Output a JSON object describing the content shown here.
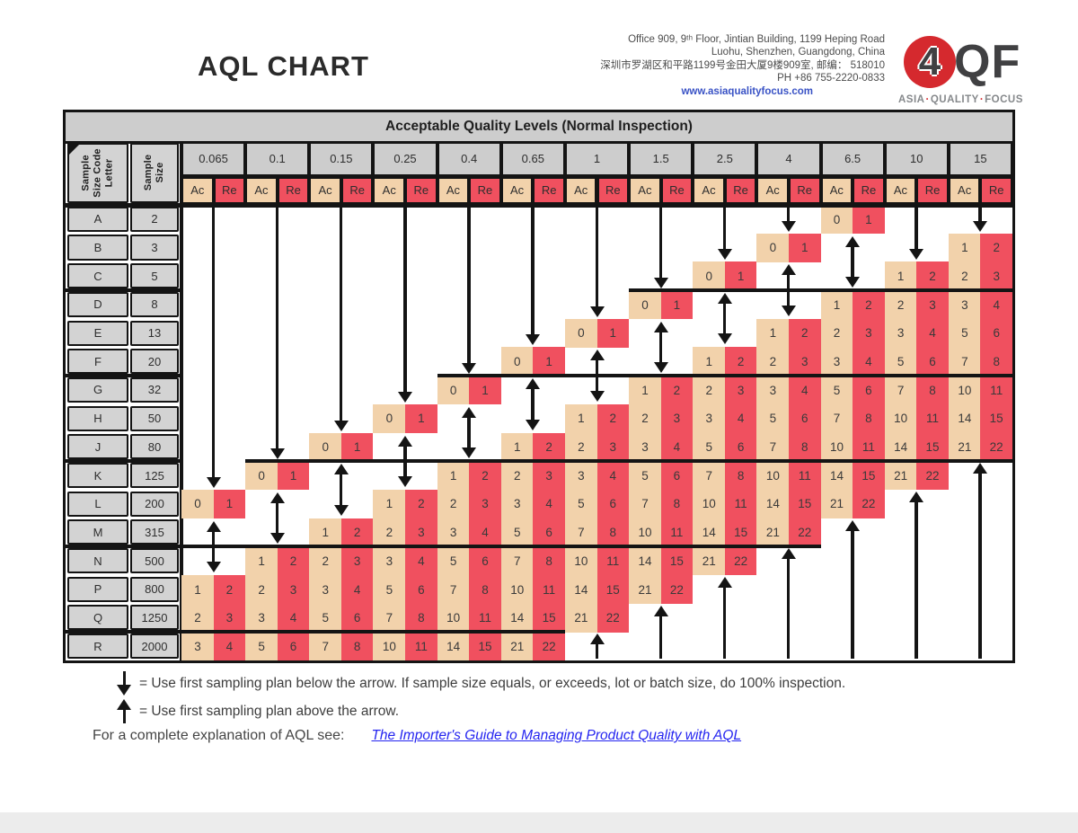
{
  "title": "AQL CHART",
  "contact": {
    "lines": [
      "Office 909, 9ᵗʰ Floor, Jintian Building, 1199 Heping Road",
      "Luohu, Shenzhen, Guangdong, China",
      "深圳市罗湖区和平路1199号金田大厦9楼909室, 邮编： 518010",
      "PH +86 755-2220-0833"
    ],
    "website": "www.asiaqualityfocus.com"
  },
  "logo": {
    "four": "4",
    "qf": "QF",
    "tagline": [
      "ASIA",
      "QUALITY",
      "FOCUS"
    ],
    "separator": "·"
  },
  "colors": {
    "ac_tan": "#f2d2ab",
    "re_red": "#f0505f",
    "header_gray": "#cdcdcd",
    "line_black": "#141414",
    "link_blue": "#2424f0",
    "logo_red": "#d5292e",
    "logo_gray": "#404042",
    "website_blue": "#3952c5"
  },
  "table": {
    "header": "Acceptable Quality Levels (Normal Inspection)",
    "col1_label": "Sample Size Code Letter",
    "col1_label_lines": [
      "Sample",
      "Size Code",
      "Letter"
    ],
    "col2_label": "Sample Size",
    "col2_label_lines": [
      "Sample",
      "Size"
    ],
    "ac_label": "Ac",
    "re_label": "Re",
    "aql_levels": [
      "0.065",
      "0.1",
      "0.15",
      "0.25",
      "0.4",
      "0.65",
      "1",
      "1.5",
      "2.5",
      "4",
      "6.5",
      "10",
      "15"
    ],
    "rows": [
      {
        "code": "A",
        "size": "2",
        "plans": [
          null,
          null,
          null,
          null,
          null,
          null,
          null,
          null,
          null,
          null,
          [
            0,
            1
          ],
          null,
          null
        ]
      },
      {
        "code": "B",
        "size": "3",
        "plans": [
          null,
          null,
          null,
          null,
          null,
          null,
          null,
          null,
          null,
          [
            0,
            1
          ],
          null,
          null,
          [
            1,
            2
          ]
        ]
      },
      {
        "code": "C",
        "size": "5",
        "plans": [
          null,
          null,
          null,
          null,
          null,
          null,
          null,
          null,
          [
            0,
            1
          ],
          null,
          null,
          [
            1,
            2
          ],
          [
            2,
            3
          ]
        ]
      },
      {
        "code": "D",
        "size": "8",
        "plans": [
          null,
          null,
          null,
          null,
          null,
          null,
          null,
          [
            0,
            1
          ],
          null,
          null,
          [
            1,
            2
          ],
          [
            2,
            3
          ],
          [
            3,
            4
          ]
        ]
      },
      {
        "code": "E",
        "size": "13",
        "plans": [
          null,
          null,
          null,
          null,
          null,
          null,
          [
            0,
            1
          ],
          null,
          null,
          [
            1,
            2
          ],
          [
            2,
            3
          ],
          [
            3,
            4
          ],
          [
            5,
            6
          ]
        ]
      },
      {
        "code": "F",
        "size": "20",
        "plans": [
          null,
          null,
          null,
          null,
          null,
          [
            0,
            1
          ],
          null,
          null,
          [
            1,
            2
          ],
          [
            2,
            3
          ],
          [
            3,
            4
          ],
          [
            5,
            6
          ],
          [
            7,
            8
          ]
        ]
      },
      {
        "code": "G",
        "size": "32",
        "plans": [
          null,
          null,
          null,
          null,
          [
            0,
            1
          ],
          null,
          null,
          [
            1,
            2
          ],
          [
            2,
            3
          ],
          [
            3,
            4
          ],
          [
            5,
            6
          ],
          [
            7,
            8
          ],
          [
            10,
            11
          ]
        ]
      },
      {
        "code": "H",
        "size": "50",
        "plans": [
          null,
          null,
          null,
          [
            0,
            1
          ],
          null,
          null,
          [
            1,
            2
          ],
          [
            2,
            3
          ],
          [
            3,
            4
          ],
          [
            5,
            6
          ],
          [
            7,
            8
          ],
          [
            10,
            11
          ],
          [
            14,
            15
          ]
        ]
      },
      {
        "code": "J",
        "size": "80",
        "plans": [
          null,
          null,
          [
            0,
            1
          ],
          null,
          null,
          [
            1,
            2
          ],
          [
            2,
            3
          ],
          [
            3,
            4
          ],
          [
            5,
            6
          ],
          [
            7,
            8
          ],
          [
            10,
            11
          ],
          [
            14,
            15
          ],
          [
            21,
            22
          ]
        ]
      },
      {
        "code": "K",
        "size": "125",
        "plans": [
          null,
          [
            0,
            1
          ],
          null,
          null,
          [
            1,
            2
          ],
          [
            2,
            3
          ],
          [
            3,
            4
          ],
          [
            5,
            6
          ],
          [
            7,
            8
          ],
          [
            10,
            11
          ],
          [
            14,
            15
          ],
          [
            21,
            22
          ],
          null
        ]
      },
      {
        "code": "L",
        "size": "200",
        "plans": [
          [
            0,
            1
          ],
          null,
          null,
          [
            1,
            2
          ],
          [
            2,
            3
          ],
          [
            3,
            4
          ],
          [
            5,
            6
          ],
          [
            7,
            8
          ],
          [
            10,
            11
          ],
          [
            14,
            15
          ],
          [
            21,
            22
          ],
          null,
          null
        ]
      },
      {
        "code": "M",
        "size": "315",
        "plans": [
          null,
          null,
          [
            1,
            2
          ],
          [
            2,
            3
          ],
          [
            3,
            4
          ],
          [
            5,
            6
          ],
          [
            7,
            8
          ],
          [
            10,
            11
          ],
          [
            14,
            15
          ],
          [
            21,
            22
          ],
          null,
          null,
          null
        ]
      },
      {
        "code": "N",
        "size": "500",
        "plans": [
          null,
          [
            1,
            2
          ],
          [
            2,
            3
          ],
          [
            3,
            4
          ],
          [
            5,
            6
          ],
          [
            7,
            8
          ],
          [
            10,
            11
          ],
          [
            14,
            15
          ],
          [
            21,
            22
          ],
          null,
          null,
          null,
          null
        ]
      },
      {
        "code": "P",
        "size": "800",
        "plans": [
          [
            1,
            2
          ],
          [
            2,
            3
          ],
          [
            3,
            4
          ],
          [
            5,
            6
          ],
          [
            7,
            8
          ],
          [
            10,
            11
          ],
          [
            14,
            15
          ],
          [
            21,
            22
          ],
          null,
          null,
          null,
          null,
          null
        ]
      },
      {
        "code": "Q",
        "size": "1250",
        "plans": [
          [
            2,
            3
          ],
          [
            3,
            4
          ],
          [
            5,
            6
          ],
          [
            7,
            8
          ],
          [
            10,
            11
          ],
          [
            14,
            15
          ],
          [
            21,
            22
          ],
          null,
          null,
          null,
          null,
          null,
          null
        ]
      },
      {
        "code": "R",
        "size": "2000",
        "plans": [
          [
            3,
            4
          ],
          [
            5,
            6
          ],
          [
            7,
            8
          ],
          [
            10,
            11
          ],
          [
            14,
            15
          ],
          [
            21,
            22
          ],
          null,
          null,
          null,
          null,
          null,
          null,
          null
        ]
      }
    ],
    "thick_lines": [
      {
        "after_row": 2,
        "left_header": true,
        "from_col": 7,
        "to_col": 13
      },
      {
        "after_row": 5,
        "left_header": true,
        "from_col": 4,
        "to_col": 13
      },
      {
        "after_row": 8,
        "left_header": true,
        "from_col": 1,
        "to_col": 13
      },
      {
        "after_row": 11,
        "left_header": true,
        "from_col": 0,
        "to_col": 10
      },
      {
        "after_row": 14,
        "left_header": true,
        "from_col": 0,
        "to_col": 6
      }
    ],
    "arrows": {
      "down": [
        {
          "col": 0,
          "tip_row": 10
        },
        {
          "col": 1,
          "tip_row": 9
        },
        {
          "col": 2,
          "tip_row": 8
        },
        {
          "col": 3,
          "tip_row": 7
        },
        {
          "col": 4,
          "tip_row": 6
        },
        {
          "col": 5,
          "tip_row": 5
        },
        {
          "col": 6,
          "tip_row": 4
        },
        {
          "col": 7,
          "tip_row": 3
        },
        {
          "col": 8,
          "tip_row": 2
        },
        {
          "col": 9,
          "tip_row": 1
        },
        {
          "col": 11,
          "tip_row": 2
        },
        {
          "col": 12,
          "tip_row": 1
        }
      ],
      "double": [
        {
          "col": 0,
          "rows": [
            11,
            12
          ]
        },
        {
          "col": 1,
          "rows": [
            10,
            11
          ]
        },
        {
          "col": 2,
          "rows": [
            9,
            10
          ]
        },
        {
          "col": 3,
          "rows": [
            8,
            9
          ]
        },
        {
          "col": 4,
          "rows": [
            7,
            8
          ]
        },
        {
          "col": 5,
          "rows": [
            6,
            7
          ]
        },
        {
          "col": 6,
          "rows": [
            5,
            6
          ]
        },
        {
          "col": 7,
          "rows": [
            4,
            5
          ]
        },
        {
          "col": 8,
          "rows": [
            3,
            4
          ]
        },
        {
          "col": 9,
          "rows": [
            2,
            3
          ]
        },
        {
          "col": 10,
          "rows": [
            1,
            2
          ]
        }
      ],
      "up": [
        {
          "col": 6,
          "tip_row": 15
        },
        {
          "col": 7,
          "tip_row": 14
        },
        {
          "col": 8,
          "tip_row": 13
        },
        {
          "col": 9,
          "tip_row": 12
        },
        {
          "col": 10,
          "tip_row": 11
        },
        {
          "col": 11,
          "tip_row": 10
        },
        {
          "col": 12,
          "tip_row": 9
        }
      ]
    }
  },
  "legend": [
    {
      "symbol": "down-arrow",
      "text": "= Use first sampling plan below the arrow.  If sample size equals, or exceeds, lot or batch size, do 100% inspection."
    },
    {
      "symbol": "up-arrow",
      "text": "= Use first sampling plan above the arrow."
    }
  ],
  "footer": {
    "text": "For a complete explanation of AQL see:",
    "link_text": "The Importer's Guide to Managing Product Quality with AQL"
  }
}
